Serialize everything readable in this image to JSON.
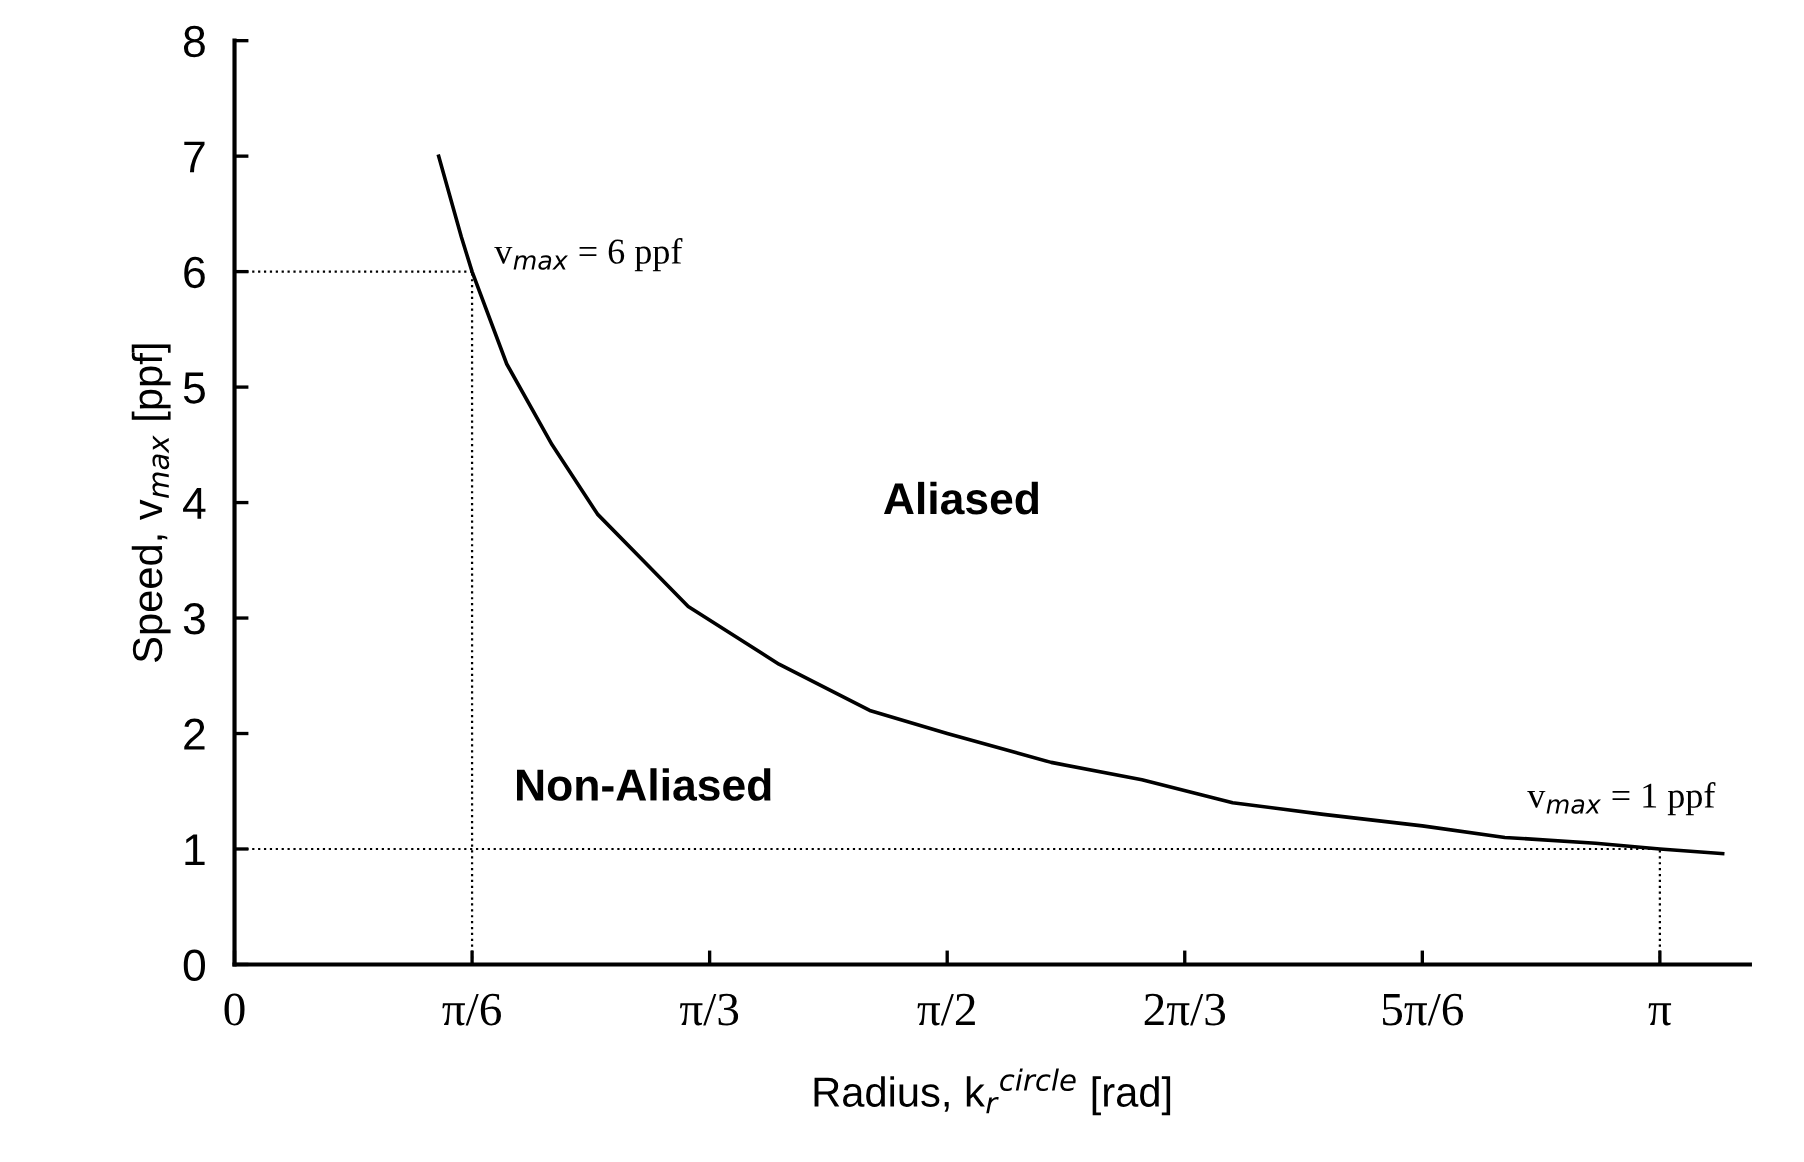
{
  "chart_data": {
    "type": "line",
    "xlabel": "Radius, k$_{r}$$^{circle}$ [rad]",
    "ylabel": "Speed, v$_{max}$ [ppf]",
    "x": [
      0.45,
      0.5,
      0.5236,
      0.6,
      0.7,
      0.8,
      0.9,
      1.0,
      1.2,
      1.4,
      1.5708,
      1.8,
      2.0,
      2.2,
      2.4,
      2.618,
      2.8,
      3.0,
      3.1416,
      3.28
    ],
    "series": [
      {
        "color": "#000000",
        "values": [
          7.0,
          6.3,
          6.0,
          5.2,
          4.5,
          3.9,
          3.5,
          3.1,
          2.6,
          2.2,
          2.0,
          1.75,
          1.6,
          1.4,
          1.3,
          1.2,
          1.1,
          1.05,
          1.0,
          0.96
        ]
      }
    ],
    "xlim": [
      0,
      3.34
    ],
    "xticks": [
      0,
      {
        "value": 0.5236,
        "label": "π/6"
      },
      {
        "value": 1.0472,
        "label": "π/3"
      },
      {
        "value": 1.5708,
        "label": "π/2"
      },
      {
        "value": 2.0944,
        "label": "2π/3"
      },
      {
        "value": 2.618,
        "label": "5π/6"
      },
      {
        "value": 3.1416,
        "label": "π"
      }
    ],
    "ylim": [
      0,
      8
    ],
    "yticks": [
      0,
      1,
      2,
      3,
      4,
      5,
      6,
      7,
      8
    ],
    "ref_lines": [
      {
        "axis": "y",
        "value": 6,
        "color": "#000000",
        "line_style": "dotted"
      },
      {
        "axis": "x",
        "value": 0.5236,
        "color": "#000000",
        "line_style": "dotted"
      },
      {
        "axis": "y",
        "value": 1,
        "color": "#000000",
        "line_style": "dotted"
      },
      {
        "axis": "x",
        "value": 3.1416,
        "color": "#000000",
        "line_style": "dotted"
      }
    ],
    "annotations": [
      {
        "text": "v$_{max}$ = 6 ppf",
        "x": 0.5236,
        "y": 6
      },
      "Aliased",
      "Non-Aliased",
      {
        "text": "v$_{max}$ = 1 ppf",
        "x": 3.1416,
        "y": 1
      }
    ],
    "grid": false,
    "legend": false,
    "marker": "none",
    "line_style": "solid"
  }
}
